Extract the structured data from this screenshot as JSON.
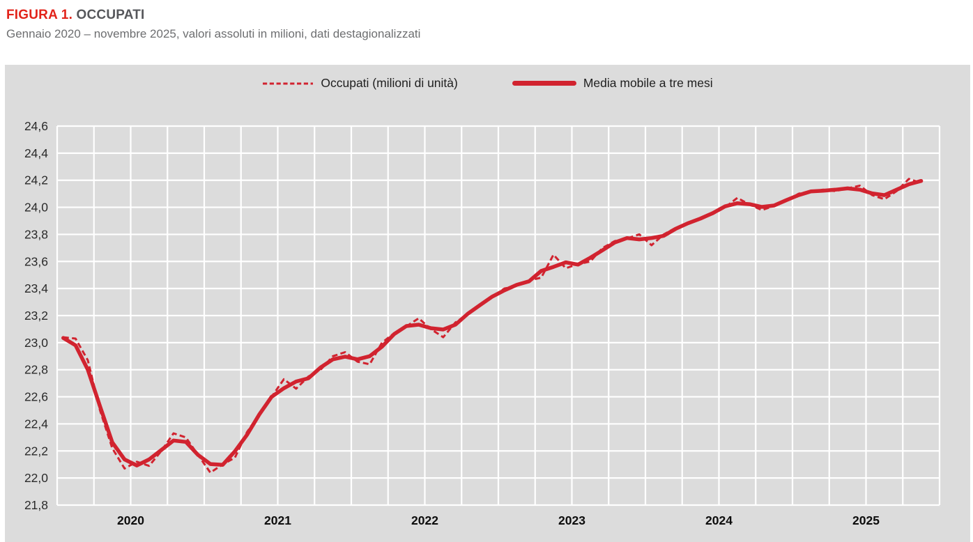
{
  "figure": {
    "label": "FIGURA 1.",
    "title": "OCCUPATI",
    "subtitle": "Gennaio 2020 – novembre 2025, valori assoluti in milioni, dati destagionalizzati"
  },
  "legend": {
    "items": [
      {
        "label": "Occupati (milioni di unità)",
        "style": "dashed"
      },
      {
        "label": "Media mobile a tre mesi",
        "style": "solid"
      }
    ]
  },
  "colors": {
    "series_red": "#d1232f",
    "figura_label_red": "#e2231a",
    "title_gray": "#56575b",
    "subtitle_gray": "#6d6e70",
    "panel_bg": "#dcdcdc",
    "gridline": "#ffffff",
    "axis_text": "#2a2a2a"
  },
  "chart_data": {
    "type": "line",
    "title": "Occupati",
    "x_period": {
      "start": "gennaio 2020",
      "end": "novembre 2025",
      "months": 71
    },
    "x_tick_labels": [
      "2020",
      "2021",
      "2022",
      "2023",
      "2024",
      "2025"
    ],
    "y_tick_labels": [
      "24,6",
      "24,4",
      "24,2",
      "24,0",
      "23,8",
      "23,6",
      "23,4",
      "23,2",
      "23,0",
      "22,8",
      "22,6",
      "22,4",
      "22,2",
      "22,0",
      "21,8"
    ],
    "ylim": [
      21.8,
      24.6
    ],
    "y_step": 0.2,
    "grid": true,
    "legend_position": "top-center",
    "months_per_gridline": 3,
    "series": [
      {
        "name": "Occupati (milioni di unità)",
        "style": "dashed",
        "values": [
          23.04,
          23.03,
          22.87,
          22.5,
          22.22,
          22.07,
          22.12,
          22.09,
          22.2,
          22.33,
          22.3,
          22.17,
          22.04,
          22.1,
          22.15,
          22.34,
          22.47,
          22.6,
          22.73,
          22.66,
          22.75,
          22.8,
          22.9,
          22.93,
          22.86,
          22.84,
          23.0,
          23.07,
          23.12,
          23.18,
          23.1,
          23.04,
          23.15,
          23.21,
          23.28,
          23.34,
          23.4,
          23.42,
          23.46,
          23.48,
          23.65,
          23.55,
          23.58,
          23.6,
          23.7,
          23.75,
          23.77,
          23.8,
          23.72,
          23.8,
          23.85,
          23.88,
          23.92,
          23.95,
          24.0,
          24.07,
          24.02,
          23.98,
          24.01,
          24.05,
          24.1,
          24.12,
          24.13,
          24.12,
          24.14,
          24.16,
          24.09,
          24.06,
          24.12,
          24.21,
          24.18
        ]
      },
      {
        "name": "Media mobile a tre mesi",
        "style": "solid",
        "derivation": "media mobile centrata a tre mesi",
        "values": [
          23.035,
          22.98,
          22.8,
          22.53,
          22.263,
          22.137,
          22.093,
          22.137,
          22.207,
          22.277,
          22.267,
          22.17,
          22.103,
          22.097,
          22.197,
          22.32,
          22.47,
          22.6,
          22.663,
          22.713,
          22.737,
          22.817,
          22.877,
          22.897,
          22.877,
          22.9,
          22.97,
          23.063,
          23.123,
          23.133,
          23.107,
          23.097,
          23.133,
          23.213,
          23.277,
          23.34,
          23.387,
          23.427,
          23.453,
          23.53,
          23.56,
          23.593,
          23.577,
          23.627,
          23.683,
          23.74,
          23.773,
          23.763,
          23.773,
          23.79,
          23.843,
          23.883,
          23.917,
          23.957,
          24.007,
          24.03,
          24.023,
          24.003,
          24.013,
          24.053,
          24.09,
          24.117,
          24.123,
          24.13,
          24.14,
          24.13,
          24.103,
          24.09,
          24.13,
          24.17,
          24.195
        ]
      }
    ]
  }
}
